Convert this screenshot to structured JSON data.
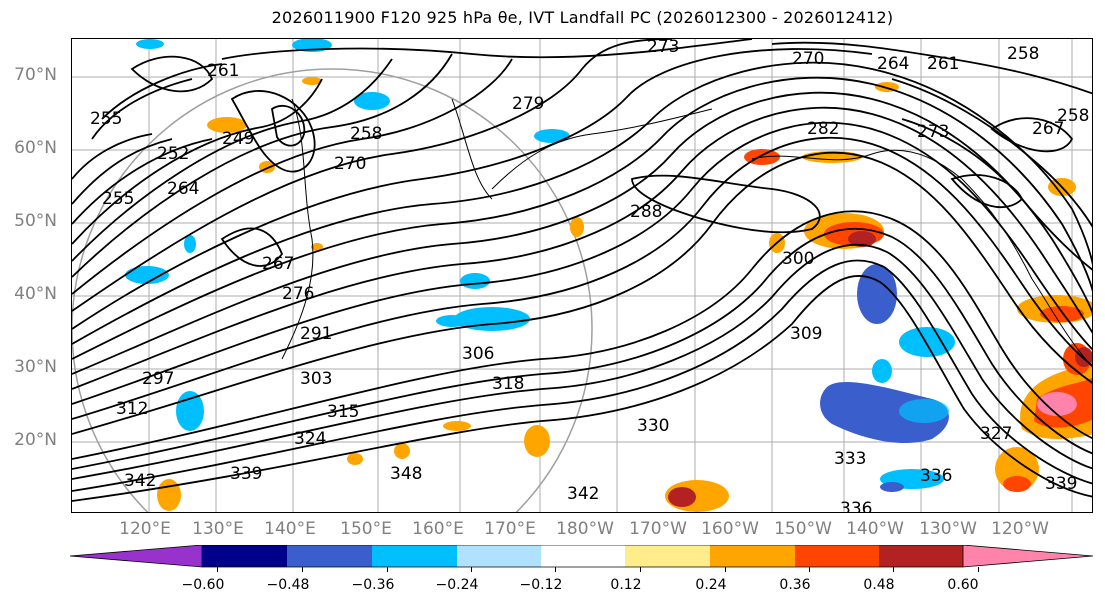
{
  "title": "2026011900 F120 925 hPa θe, IVT Landfall PC (2026012300 - 2026012412)",
  "lat_labels": [
    "70°N",
    "60°N",
    "50°N",
    "40°N",
    "30°N",
    "20°N"
  ],
  "lon_labels": [
    "120°E",
    "130°E",
    "140°E",
    "150°E",
    "160°E",
    "170°E",
    "180°W",
    "170°W",
    "160°W",
    "150°W",
    "140°W",
    "130°W",
    "120°W"
  ],
  "contour_labels": [
    "273",
    "270",
    "264",
    "261",
    "258",
    "261",
    "255",
    "252",
    "249",
    "279",
    "258",
    "270",
    "282",
    "273",
    "267",
    "258",
    "255",
    "264",
    "288",
    "300",
    "267",
    "276",
    "291",
    "306",
    "309",
    "297",
    "303",
    "318",
    "312",
    "315",
    "324",
    "330",
    "333",
    "327",
    "339",
    "342",
    "348",
    "336",
    "339",
    "342",
    "336"
  ],
  "colorbar": {
    "ticks": [
      "−0.60",
      "−0.48",
      "−0.36",
      "−0.24",
      "−0.12",
      "0.12",
      "0.24",
      "0.36",
      "0.48",
      "0.60"
    ],
    "colors": [
      "#9932cc",
      "#00008b",
      "#3a5fcd",
      "#00bfff",
      "#b0e2ff",
      "#ffffff",
      "#ffec8b",
      "#ffa500",
      "#ff4500",
      "#b22222",
      "#ff83aa",
      "#ff83aa"
    ],
    "under_color": "#9932cc",
    "over_color": "#ff83aa"
  }
}
